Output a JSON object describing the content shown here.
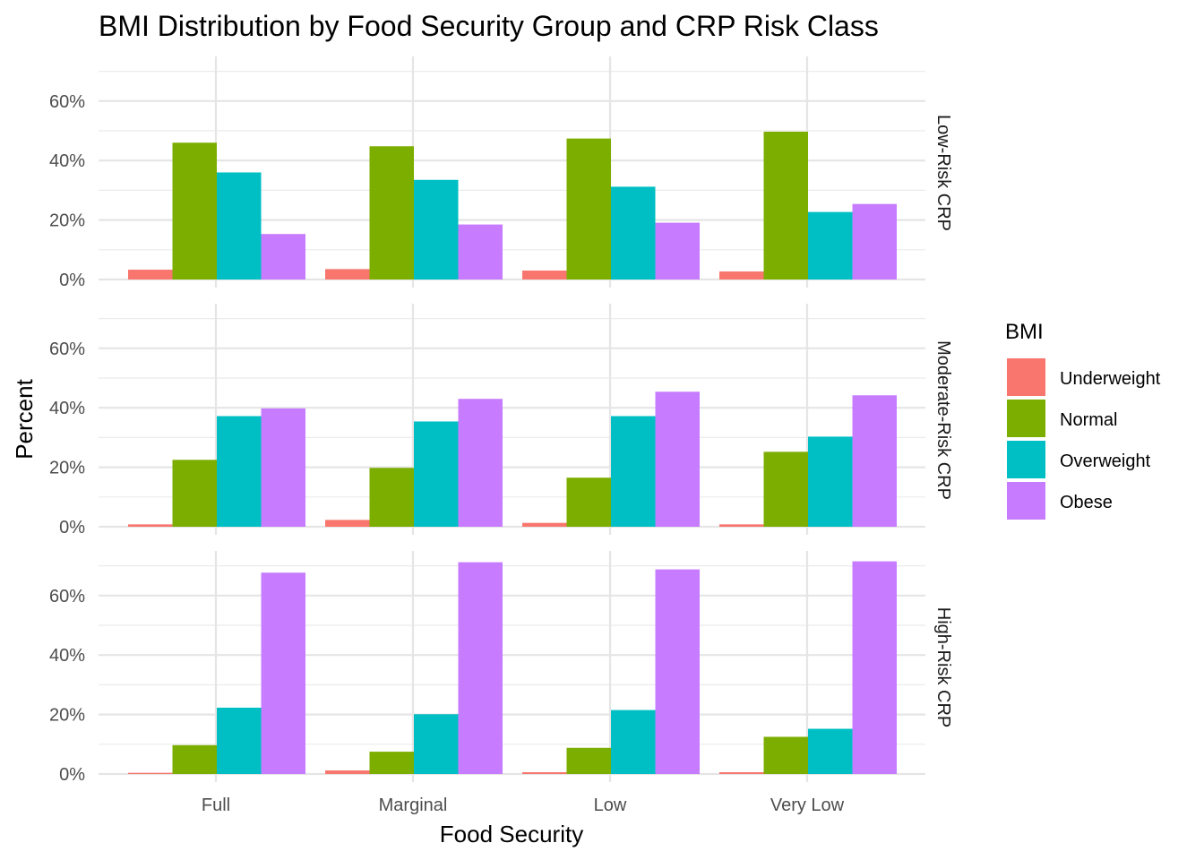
{
  "chart_data": {
    "type": "bar",
    "title": "BMI Distribution by Food Security Group and CRP Risk Class",
    "xlabel": "Food Security",
    "ylabel": "Percent",
    "categories": [
      "Full",
      "Marginal",
      "Low",
      "Very Low"
    ],
    "ylim": [
      0,
      0.72
    ],
    "y_ticks": [
      "0%",
      "20%",
      "40%",
      "60%"
    ],
    "y_tick_values": [
      0,
      0.2,
      0.4,
      0.6
    ],
    "grid": true,
    "legend": {
      "title": "BMI",
      "position": "right",
      "items": [
        {
          "name": "Underweight",
          "color": "#F8766D"
        },
        {
          "name": "Normal",
          "color": "#7CAE00"
        },
        {
          "name": "Overweight",
          "color": "#00BFC4"
        },
        {
          "name": "Obese",
          "color": "#C77CFF"
        }
      ]
    },
    "panels": [
      {
        "label": "Low-Risk CRP",
        "series": [
          {
            "name": "Underweight",
            "values": [
              0.033,
              0.035,
              0.03,
              0.027
            ]
          },
          {
            "name": "Normal",
            "values": [
              0.46,
              0.448,
              0.474,
              0.497
            ]
          },
          {
            "name": "Overweight",
            "values": [
              0.36,
              0.335,
              0.312,
              0.227
            ]
          },
          {
            "name": "Obese",
            "values": [
              0.153,
              0.185,
              0.191,
              0.254
            ]
          }
        ]
      },
      {
        "label": "Moderate-Risk CRP",
        "series": [
          {
            "name": "Underweight",
            "values": [
              0.008,
              0.023,
              0.013,
              0.008
            ]
          },
          {
            "name": "Normal",
            "values": [
              0.225,
              0.198,
              0.165,
              0.252
            ]
          },
          {
            "name": "Overweight",
            "values": [
              0.372,
              0.354,
              0.372,
              0.303
            ]
          },
          {
            "name": "Obese",
            "values": [
              0.398,
              0.43,
              0.454,
              0.442
            ]
          }
        ]
      },
      {
        "label": "High-Risk CRP",
        "series": [
          {
            "name": "Underweight",
            "values": [
              0.004,
              0.012,
              0.006,
              0.006
            ]
          },
          {
            "name": "Normal",
            "values": [
              0.097,
              0.075,
              0.088,
              0.125
            ]
          },
          {
            "name": "Overweight",
            "values": [
              0.223,
              0.201,
              0.215,
              0.152
            ]
          },
          {
            "name": "Obese",
            "values": [
              0.677,
              0.712,
              0.688,
              0.715
            ]
          }
        ]
      }
    ]
  }
}
